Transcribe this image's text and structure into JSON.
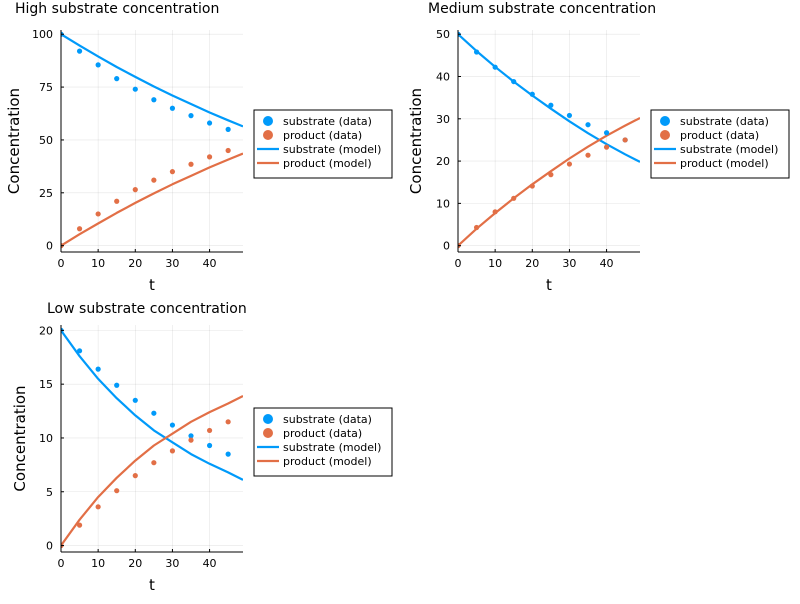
{
  "colors": {
    "substrate": "#009AFA",
    "product": "#E26F46"
  },
  "chart_data": [
    {
      "type": "scatter",
      "title": "High substrate concentration",
      "xlabel": "t",
      "ylabel": "Concentration",
      "xlim": [
        0,
        49
      ],
      "ylim": [
        -3,
        102
      ],
      "xticks": [
        0,
        10,
        20,
        30,
        40
      ],
      "yticks": [
        0,
        25,
        50,
        75,
        100
      ],
      "grid": true,
      "legend_position": "outer-right",
      "series": [
        {
          "name": "substrate (data)",
          "kind": "scatter",
          "color": "#009AFA",
          "x": [
            0,
            5,
            10,
            15,
            20,
            25,
            30,
            35,
            40,
            45
          ],
          "y": [
            100,
            92,
            85.5,
            79,
            74,
            69,
            65,
            61.5,
            58,
            55
          ]
        },
        {
          "name": "product (data)",
          "kind": "scatter",
          "color": "#E26F46",
          "x": [
            0,
            5,
            10,
            15,
            20,
            25,
            30,
            35,
            40,
            45
          ],
          "y": [
            0,
            8,
            15,
            21,
            26.5,
            31,
            35,
            38.5,
            42,
            45
          ]
        },
        {
          "name": "substrate (model)",
          "kind": "line",
          "color": "#009AFA",
          "x": [
            0,
            5,
            10,
            15,
            20,
            25,
            30,
            35,
            40,
            45,
            49
          ],
          "y": [
            100,
            94.6,
            89.5,
            84.5,
            79.8,
            75.3,
            71,
            67,
            63,
            59.3,
            56.4
          ]
        },
        {
          "name": "product (model)",
          "kind": "line",
          "color": "#E26F46",
          "x": [
            0,
            5,
            10,
            15,
            20,
            25,
            30,
            35,
            40,
            45,
            49
          ],
          "y": [
            0,
            5.4,
            10.5,
            15.5,
            20.2,
            24.7,
            29,
            33,
            37,
            40.7,
            43.6
          ]
        }
      ]
    },
    {
      "type": "scatter",
      "title": "Medium substrate concentration",
      "xlabel": "t",
      "ylabel": "Concentration",
      "xlim": [
        0,
        49
      ],
      "ylim": [
        -1.5,
        51
      ],
      "xticks": [
        0,
        10,
        20,
        30,
        40
      ],
      "yticks": [
        0,
        10,
        20,
        30,
        40,
        50
      ],
      "grid": true,
      "legend_position": "outer-right",
      "series": [
        {
          "name": "substrate (data)",
          "kind": "scatter",
          "color": "#009AFA",
          "x": [
            0,
            5,
            10,
            15,
            20,
            25,
            30,
            35,
            40,
            45
          ],
          "y": [
            50,
            45.8,
            42.2,
            38.8,
            35.8,
            33.2,
            30.8,
            28.6,
            26.7,
            25.0
          ]
        },
        {
          "name": "product (data)",
          "kind": "scatter",
          "color": "#E26F46",
          "x": [
            0,
            5,
            10,
            15,
            20,
            25,
            30,
            35,
            40,
            45
          ],
          "y": [
            0,
            4.3,
            8,
            11.2,
            14.1,
            16.8,
            19.3,
            21.4,
            23.3,
            25.0
          ]
        },
        {
          "name": "substrate (model)",
          "kind": "line",
          "color": "#009AFA",
          "x": [
            0,
            5,
            10,
            15,
            20,
            25,
            30,
            35,
            40,
            45,
            49
          ],
          "y": [
            50,
            46,
            42.3,
            38.8,
            35.5,
            32.4,
            29.4,
            26.6,
            24,
            21.6,
            19.8
          ]
        },
        {
          "name": "product (model)",
          "kind": "line",
          "color": "#E26F46",
          "x": [
            0,
            5,
            10,
            15,
            20,
            25,
            30,
            35,
            40,
            45,
            49
          ],
          "y": [
            0,
            4,
            7.7,
            11.2,
            14.5,
            17.6,
            20.6,
            23.4,
            26,
            28.4,
            30.2
          ]
        }
      ]
    },
    {
      "type": "scatter",
      "title": "Low substrate concentration",
      "xlabel": "t",
      "ylabel": "Concentration",
      "xlim": [
        0,
        49
      ],
      "ylim": [
        -0.6,
        20.5
      ],
      "xticks": [
        0,
        10,
        20,
        30,
        40
      ],
      "yticks": [
        0,
        5,
        10,
        15,
        20
      ],
      "grid": true,
      "legend_position": "outer-right",
      "series": [
        {
          "name": "substrate (data)",
          "kind": "scatter",
          "color": "#009AFA",
          "x": [
            0,
            5,
            10,
            15,
            20,
            25,
            30,
            35,
            40,
            45
          ],
          "y": [
            20,
            18.1,
            16.4,
            14.9,
            13.5,
            12.3,
            11.2,
            10.2,
            9.3,
            8.5
          ]
        },
        {
          "name": "product (data)",
          "kind": "scatter",
          "color": "#E26F46",
          "x": [
            0,
            5,
            10,
            15,
            20,
            25,
            30,
            35,
            40,
            45
          ],
          "y": [
            0,
            1.9,
            3.6,
            5.1,
            6.5,
            7.7,
            8.8,
            9.8,
            10.7,
            11.5
          ]
        },
        {
          "name": "substrate (model)",
          "kind": "line",
          "color": "#009AFA",
          "x": [
            0,
            5,
            10,
            15,
            20,
            25,
            30,
            35,
            40,
            45,
            49
          ],
          "y": [
            20,
            17.6,
            15.5,
            13.7,
            12.1,
            10.7,
            9.6,
            8.5,
            7.6,
            6.8,
            6.1
          ]
        },
        {
          "name": "product (model)",
          "kind": "line",
          "color": "#E26F46",
          "x": [
            0,
            5,
            10,
            15,
            20,
            25,
            30,
            35,
            40,
            45,
            49
          ],
          "y": [
            0,
            2.4,
            4.5,
            6.3,
            7.9,
            9.3,
            10.4,
            11.5,
            12.4,
            13.2,
            13.9
          ]
        }
      ]
    }
  ]
}
